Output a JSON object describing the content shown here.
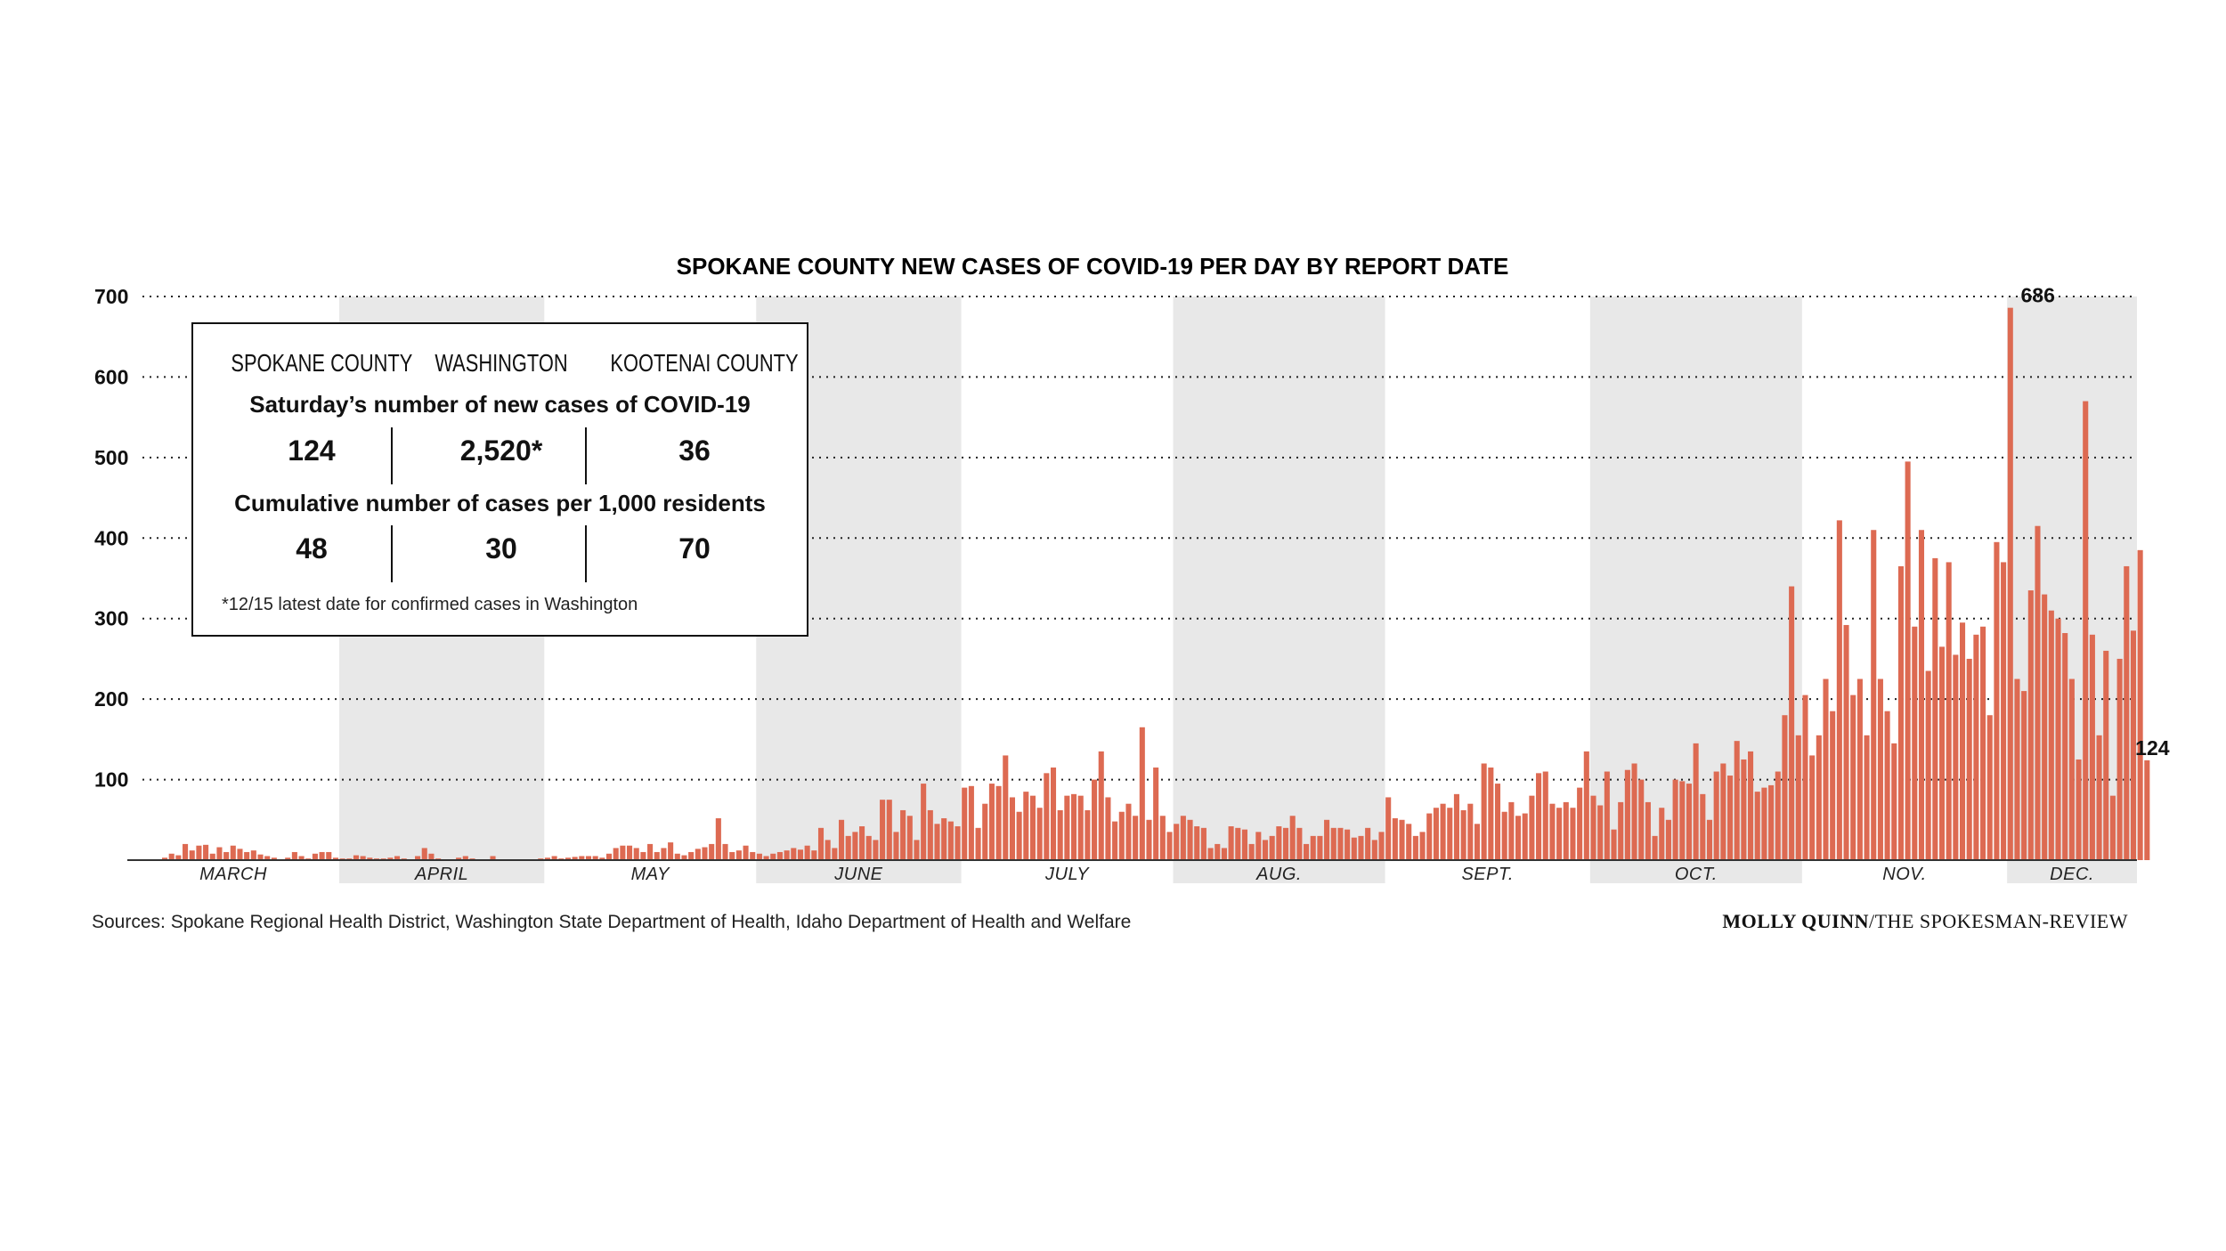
{
  "source_text": "Sources: Spokane Regional Health District, Washington State Department of Health, Idaho Department of Health and Welfare",
  "credit": {
    "author": "MOLLY QUINN",
    "outlet": "/THE SPOKESMAN-REVIEW"
  },
  "info_box": {
    "headers": [
      "SPOKANE COUNTY",
      "WASHINGTON",
      "KOOTENAI COUNTY"
    ],
    "row1_label": "Saturday’s number of new cases of COVID-19",
    "row1_values": [
      "124",
      "2,520*",
      "36"
    ],
    "row2_label": "Cumulative number of cases per 1,000 residents",
    "row2_values": [
      "48",
      "30",
      "70"
    ],
    "footnote": "*12/15 latest date for confirmed cases in Washington"
  },
  "chart_data": {
    "type": "bar",
    "title": "SPOKANE COUNTY NEW CASES OF COVID-19 PER DAY BY REPORT DATE",
    "xlabel": "",
    "ylabel": "",
    "ylim": [
      0,
      700
    ],
    "yticks": [
      100,
      200,
      300,
      400,
      500,
      600,
      700
    ],
    "grid": true,
    "x_start": "2020-03-01",
    "x_end": "2020-12-19",
    "month_labels": [
      "MARCH",
      "APRIL",
      "MAY",
      "JUNE",
      "JULY",
      "AUG.",
      "SEPT.",
      "OCT.",
      "NOV.",
      "DEC."
    ],
    "month_starts": [
      "2020-03-01",
      "2020-04-01",
      "2020-05-01",
      "2020-06-01",
      "2020-07-01",
      "2020-08-01",
      "2020-09-01",
      "2020-10-01",
      "2020-11-01",
      "2020-12-01",
      "2020-12-19"
    ],
    "shaded_months": [
      "APRIL",
      "JUNE",
      "AUG.",
      "OCT.",
      "DEC."
    ],
    "bar_color": "#dd6a52",
    "shade_color": "#e8e8e8",
    "annotations": [
      {
        "label": "686",
        "date": "2020-12-05",
        "value": 686
      },
      {
        "label": "124",
        "date": "2020-12-19",
        "value": 124
      }
    ],
    "values": [
      0,
      0,
      0,
      0,
      0,
      3,
      8,
      6,
      20,
      12,
      18,
      19,
      8,
      16,
      10,
      18,
      14,
      10,
      12,
      7,
      5,
      3,
      0,
      3,
      10,
      5,
      2,
      8,
      10,
      10,
      3,
      2,
      2,
      6,
      5,
      3,
      2,
      2,
      3,
      5,
      2,
      1,
      5,
      15,
      8,
      2,
      1,
      0,
      3,
      5,
      2,
      1,
      0,
      5,
      0,
      1,
      0,
      0,
      0,
      0,
      2,
      3,
      5,
      2,
      3,
      4,
      5,
      5,
      5,
      3,
      8,
      15,
      18,
      18,
      15,
      10,
      20,
      10,
      15,
      22,
      8,
      6,
      10,
      14,
      16,
      20,
      52,
      20,
      10,
      12,
      18,
      10,
      8,
      5,
      8,
      10,
      12,
      15,
      13,
      18,
      12,
      40,
      25,
      15,
      50,
      30,
      35,
      42,
      30,
      25,
      75,
      75,
      35,
      62,
      55,
      25,
      95,
      62,
      45,
      52,
      48,
      42,
      90,
      92,
      40,
      70,
      95,
      92,
      130,
      78,
      60,
      85,
      80,
      65,
      108,
      115,
      62,
      80,
      82,
      80,
      62,
      100,
      135,
      78,
      48,
      60,
      70,
      55,
      165,
      50,
      115,
      55,
      35,
      45,
      55,
      50,
      42,
      40,
      15,
      20,
      15,
      42,
      40,
      38,
      20,
      35,
      25,
      30,
      42,
      40,
      55,
      40,
      20,
      30,
      30,
      50,
      40,
      40,
      38,
      28,
      30,
      40,
      25,
      35,
      78,
      52,
      50,
      45,
      30,
      35,
      58,
      65,
      70,
      65,
      82,
      62,
      70,
      45,
      120,
      115,
      95,
      60,
      72,
      55,
      58,
      80,
      108,
      110,
      70,
      65,
      72,
      65,
      90,
      135,
      80,
      68,
      110,
      38,
      72,
      112,
      120,
      100,
      72,
      30,
      65,
      50,
      100,
      98,
      95,
      145,
      82,
      50,
      110,
      120,
      105,
      148,
      125,
      135,
      85,
      90,
      93,
      110,
      180,
      340,
      155,
      205,
      130,
      155,
      225,
      185,
      422,
      292,
      205,
      225,
      155,
      410,
      225,
      185,
      145,
      365,
      495,
      290,
      410,
      235,
      375,
      265,
      370,
      255,
      295,
      250,
      280,
      290,
      180,
      395,
      370,
      686,
      225,
      210,
      335,
      415,
      330,
      310,
      300,
      282,
      225,
      125,
      570,
      280,
      155,
      260,
      80,
      250,
      365,
      285,
      385,
      124
    ]
  }
}
